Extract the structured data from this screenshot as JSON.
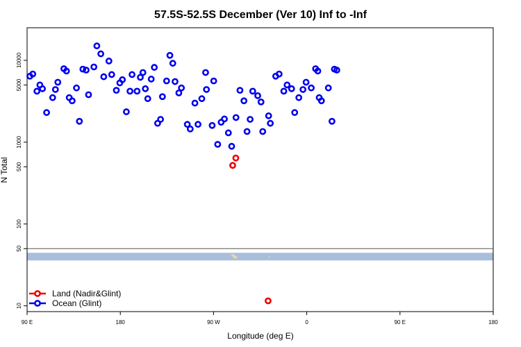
{
  "chart_data": {
    "type": "scatter",
    "title": "57.5S-52.5S December (Ver 10)   Inf to -Inf",
    "xlabel": "Longitude (deg E)",
    "ylabel": "N Total",
    "xlim": [
      -90,
      180
    ],
    "ylim": [
      8.5,
      25000
    ],
    "yscale": "log",
    "x_ticks": [
      {
        "value": -90,
        "label": "90 E"
      },
      {
        "value": -36,
        "label": "180"
      },
      {
        "value": 18,
        "label": "90 W"
      },
      {
        "value": 72,
        "label": "0"
      },
      {
        "value": 126,
        "label": "90 E"
      },
      {
        "value": 180,
        "label": "180"
      }
    ],
    "y_ticks": [
      10,
      50,
      100,
      500,
      1000,
      5000,
      10000
    ],
    "divider_y": 50,
    "grid": false,
    "legend_position": "bottom-left",
    "series": [
      {
        "name": "Land (Nadir&Glint)",
        "color": "#ee0000",
        "points": [
          [
            29.1,
            520
          ],
          [
            30.9,
            640
          ],
          [
            49.6,
            11.5
          ]
        ]
      },
      {
        "name": "Ocean (Glint)",
        "color": "#0000ee",
        "points": [
          [
            -88.4,
            6400
          ],
          [
            -86.7,
            6800
          ],
          [
            -84.3,
            4200
          ],
          [
            -82.6,
            5000
          ],
          [
            -81.1,
            4500
          ],
          [
            -78.7,
            2300
          ],
          [
            -75.2,
            3500
          ],
          [
            -73.6,
            4400
          ],
          [
            -72.2,
            5400
          ],
          [
            -68.7,
            7900
          ],
          [
            -67.2,
            7400
          ],
          [
            -65.6,
            3500
          ],
          [
            -63.9,
            3200
          ],
          [
            -61.4,
            4600
          ],
          [
            -59.7,
            1800
          ],
          [
            -57.7,
            7800
          ],
          [
            -55.8,
            7600
          ],
          [
            -54.4,
            3800
          ],
          [
            -51.3,
            8300
          ],
          [
            -49.6,
            15000
          ],
          [
            -47.3,
            12000
          ],
          [
            -45.6,
            6300
          ],
          [
            -42.6,
            9800
          ],
          [
            -41.0,
            6700
          ],
          [
            -38.3,
            4300
          ],
          [
            -36.3,
            5300
          ],
          [
            -34.8,
            5800
          ],
          [
            -32.5,
            2350
          ],
          [
            -30.4,
            4200
          ],
          [
            -29.2,
            6700
          ],
          [
            -26.3,
            4200
          ],
          [
            -24.4,
            6200
          ],
          [
            -22.9,
            7100
          ],
          [
            -21.5,
            4500
          ],
          [
            -20.1,
            3400
          ],
          [
            -18.1,
            5900
          ],
          [
            -16.3,
            8200
          ],
          [
            -14.4,
            1700
          ],
          [
            -12.7,
            1900
          ],
          [
            -11.6,
            3600
          ],
          [
            -9.2,
            5600
          ],
          [
            -7.3,
            11500
          ],
          [
            -5.6,
            9200
          ],
          [
            -4.3,
            5500
          ],
          [
            -2.1,
            4000
          ],
          [
            -0.6,
            4600
          ],
          [
            2.8,
            1650
          ],
          [
            4.5,
            1450
          ],
          [
            7.2,
            3000
          ],
          [
            9.0,
            1650
          ],
          [
            11.2,
            3400
          ],
          [
            13.4,
            7100
          ],
          [
            13.9,
            4400
          ],
          [
            17.2,
            1600
          ],
          [
            18.1,
            5600
          ],
          [
            20.4,
            940
          ],
          [
            22.4,
            1750
          ],
          [
            24.3,
            1920
          ],
          [
            26.6,
            1300
          ],
          [
            28.5,
            890
          ],
          [
            31.0,
            2000
          ],
          [
            33.3,
            4300
          ],
          [
            35.6,
            3200
          ],
          [
            37.4,
            1350
          ],
          [
            39.2,
            1900
          ],
          [
            40.7,
            4200
          ],
          [
            43.6,
            3700
          ],
          [
            45.5,
            3100
          ],
          [
            46.5,
            1350
          ],
          [
            49.9,
            2100
          ],
          [
            50.9,
            1700
          ],
          [
            54.0,
            6400
          ],
          [
            56.0,
            6800
          ],
          [
            58.7,
            4200
          ],
          [
            60.6,
            5000
          ],
          [
            63.2,
            4500
          ],
          [
            65.0,
            2300
          ],
          [
            67.4,
            3500
          ],
          [
            69.8,
            4400
          ],
          [
            71.6,
            5400
          ],
          [
            74.6,
            4600
          ],
          [
            77.1,
            7900
          ],
          [
            78.4,
            7400
          ],
          [
            79.2,
            3500
          ],
          [
            80.5,
            3200
          ],
          [
            84.5,
            4600
          ],
          [
            86.6,
            1800
          ],
          [
            88.0,
            7800
          ],
          [
            89.4,
            7600
          ]
        ]
      }
    ]
  }
}
